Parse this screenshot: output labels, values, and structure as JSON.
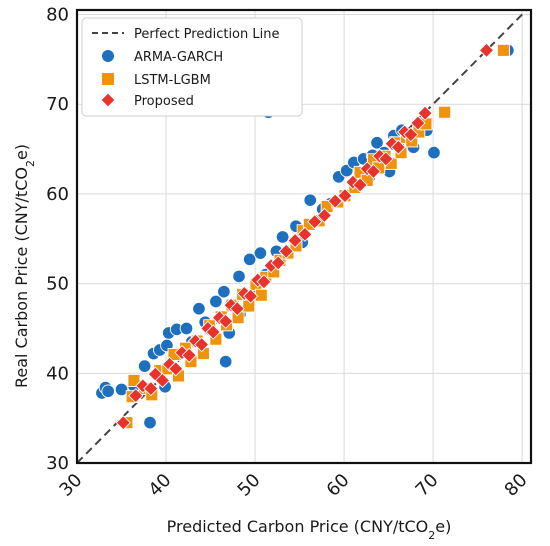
{
  "chart_data": {
    "type": "scatter",
    "xlabel": "Predicted Carbon Price (CNY/tCO",
    "xlabel_sub": "2",
    "xlabel_end": "e)",
    "ylabel": "Real Carbon Price (CNY/tCO",
    "ylabel_sub": "2",
    "ylabel_end": "e)",
    "xlim": [
      30,
      81
    ],
    "ylim": [
      30,
      80.5
    ],
    "xticks": [
      "30",
      "40",
      "50",
      "60",
      "70",
      "80"
    ],
    "yticks": [
      "30",
      "40",
      "50",
      "60",
      "70",
      "80"
    ],
    "grid": true,
    "legend_position": "top-left",
    "reference_line": {
      "label": "Perfect Prediction Line",
      "color": "#444444"
    },
    "series": [
      {
        "name": "ARMA-GARCH",
        "marker": "circle",
        "color": "#1f6fbf",
        "points": [
          [
            32.8,
            37.8
          ],
          [
            33.2,
            38.4
          ],
          [
            33.5,
            38.0
          ],
          [
            35.0,
            38.2
          ],
          [
            36.4,
            38.6
          ],
          [
            37.6,
            40.8
          ],
          [
            38.2,
            34.5
          ],
          [
            38.6,
            42.2
          ],
          [
            39.3,
            42.6
          ],
          [
            40.3,
            44.5
          ],
          [
            40.1,
            43.1
          ],
          [
            39.9,
            38.5
          ],
          [
            41.2,
            44.9
          ],
          [
            42.3,
            45.0
          ],
          [
            42.9,
            43.5
          ],
          [
            43.7,
            47.2
          ],
          [
            44.4,
            45.7
          ],
          [
            45.6,
            48.0
          ],
          [
            46.7,
            41.3
          ],
          [
            46.5,
            49.1
          ],
          [
            47.1,
            44.5
          ],
          [
            48.2,
            50.8
          ],
          [
            48.3,
            46.6
          ],
          [
            49.4,
            52.7
          ],
          [
            50.1,
            48.9
          ],
          [
            50.6,
            53.4
          ],
          [
            51.5,
            69.1
          ],
          [
            51.2,
            51.0
          ],
          [
            52.4,
            53.6
          ],
          [
            53.1,
            55.2
          ],
          [
            54.6,
            56.4
          ],
          [
            55.3,
            54.6
          ],
          [
            56.2,
            59.3
          ],
          [
            57.6,
            58.3
          ],
          [
            58.5,
            58.9
          ],
          [
            59.4,
            61.9
          ],
          [
            60.3,
            62.6
          ],
          [
            61.1,
            63.5
          ],
          [
            61.5,
            60.8
          ],
          [
            62.2,
            63.9
          ],
          [
            62.8,
            61.8
          ],
          [
            63.2,
            64.3
          ],
          [
            63.7,
            65.7
          ],
          [
            64.5,
            64.6
          ],
          [
            65.1,
            62.5
          ],
          [
            65.6,
            66.5
          ],
          [
            66.1,
            65.4
          ],
          [
            66.5,
            67.1
          ],
          [
            67.2,
            66.1
          ],
          [
            67.8,
            65.2
          ],
          [
            68.4,
            67.8
          ],
          [
            69.3,
            67.1
          ],
          [
            70.1,
            64.6
          ],
          [
            78.4,
            76.0
          ]
        ]
      },
      {
        "name": "LSTM-LGBM",
        "marker": "square",
        "color": "#f0930c",
        "points": [
          [
            35.6,
            34.5
          ],
          [
            36.2,
            37.4
          ],
          [
            36.4,
            39.2
          ],
          [
            37.6,
            38.3
          ],
          [
            38.4,
            37.6
          ],
          [
            39.3,
            40.3
          ],
          [
            40.2,
            40.5
          ],
          [
            40.9,
            42.1
          ],
          [
            41.4,
            39.7
          ],
          [
            42.2,
            42.8
          ],
          [
            42.8,
            41.3
          ],
          [
            43.5,
            43.6
          ],
          [
            44.2,
            42.2
          ],
          [
            44.9,
            45.3
          ],
          [
            45.6,
            43.8
          ],
          [
            46.2,
            46.3
          ],
          [
            46.8,
            45.4
          ],
          [
            47.4,
            47.6
          ],
          [
            48.1,
            46.2
          ],
          [
            48.6,
            48.8
          ],
          [
            49.3,
            47.5
          ],
          [
            50.1,
            49.9
          ],
          [
            50.7,
            48.7
          ],
          [
            51.2,
            50.7
          ],
          [
            52.1,
            51.3
          ],
          [
            52.8,
            52.6
          ],
          [
            53.7,
            53.4
          ],
          [
            54.6,
            54.2
          ],
          [
            55.4,
            55.9
          ],
          [
            56.1,
            56.6
          ],
          [
            57.2,
            57.0
          ],
          [
            58.1,
            58.6
          ],
          [
            59.3,
            59.1
          ],
          [
            60.1,
            59.8
          ],
          [
            61.2,
            60.7
          ],
          [
            61.8,
            62.4
          ],
          [
            62.6,
            61.5
          ],
          [
            63.3,
            63.8
          ],
          [
            63.9,
            62.9
          ],
          [
            64.6,
            64.2
          ],
          [
            65.3,
            63.4
          ],
          [
            65.8,
            65.7
          ],
          [
            66.4,
            64.6
          ],
          [
            67.0,
            66.3
          ],
          [
            67.6,
            65.9
          ],
          [
            68.4,
            66.9
          ],
          [
            69.2,
            67.8
          ],
          [
            71.3,
            69.1
          ],
          [
            77.9,
            76.0
          ]
        ]
      },
      {
        "name": "Proposed",
        "marker": "diamond",
        "color": "#e8322b",
        "points": [
          [
            35.2,
            34.5
          ],
          [
            36.6,
            37.5
          ],
          [
            37.4,
            38.6
          ],
          [
            38.3,
            38.3
          ],
          [
            38.8,
            39.9
          ],
          [
            39.6,
            39.2
          ],
          [
            40.4,
            41.0
          ],
          [
            41.1,
            40.5
          ],
          [
            41.8,
            42.3
          ],
          [
            42.6,
            42.0
          ],
          [
            43.3,
            43.6
          ],
          [
            44.0,
            43.2
          ],
          [
            44.7,
            45.0
          ],
          [
            45.3,
            44.6
          ],
          [
            46.0,
            46.2
          ],
          [
            46.7,
            45.8
          ],
          [
            47.3,
            47.6
          ],
          [
            48.0,
            47.2
          ],
          [
            48.8,
            48.9
          ],
          [
            49.5,
            48.6
          ],
          [
            50.3,
            50.4
          ],
          [
            51.0,
            50.2
          ],
          [
            51.8,
            52.0
          ],
          [
            52.6,
            52.3
          ],
          [
            53.5,
            53.6
          ],
          [
            54.5,
            54.8
          ],
          [
            55.6,
            55.5
          ],
          [
            56.7,
            56.9
          ],
          [
            57.8,
            57.6
          ],
          [
            59.0,
            59.2
          ],
          [
            60.1,
            59.8
          ],
          [
            61.0,
            61.3
          ],
          [
            61.8,
            61.0
          ],
          [
            62.6,
            62.8
          ],
          [
            63.3,
            62.5
          ],
          [
            64.0,
            64.2
          ],
          [
            64.7,
            63.9
          ],
          [
            65.4,
            65.6
          ],
          [
            66.1,
            65.2
          ],
          [
            66.8,
            66.9
          ],
          [
            67.5,
            66.6
          ],
          [
            68.3,
            67.9
          ],
          [
            69.1,
            69.0
          ],
          [
            76.0,
            76.0
          ]
        ]
      }
    ]
  }
}
